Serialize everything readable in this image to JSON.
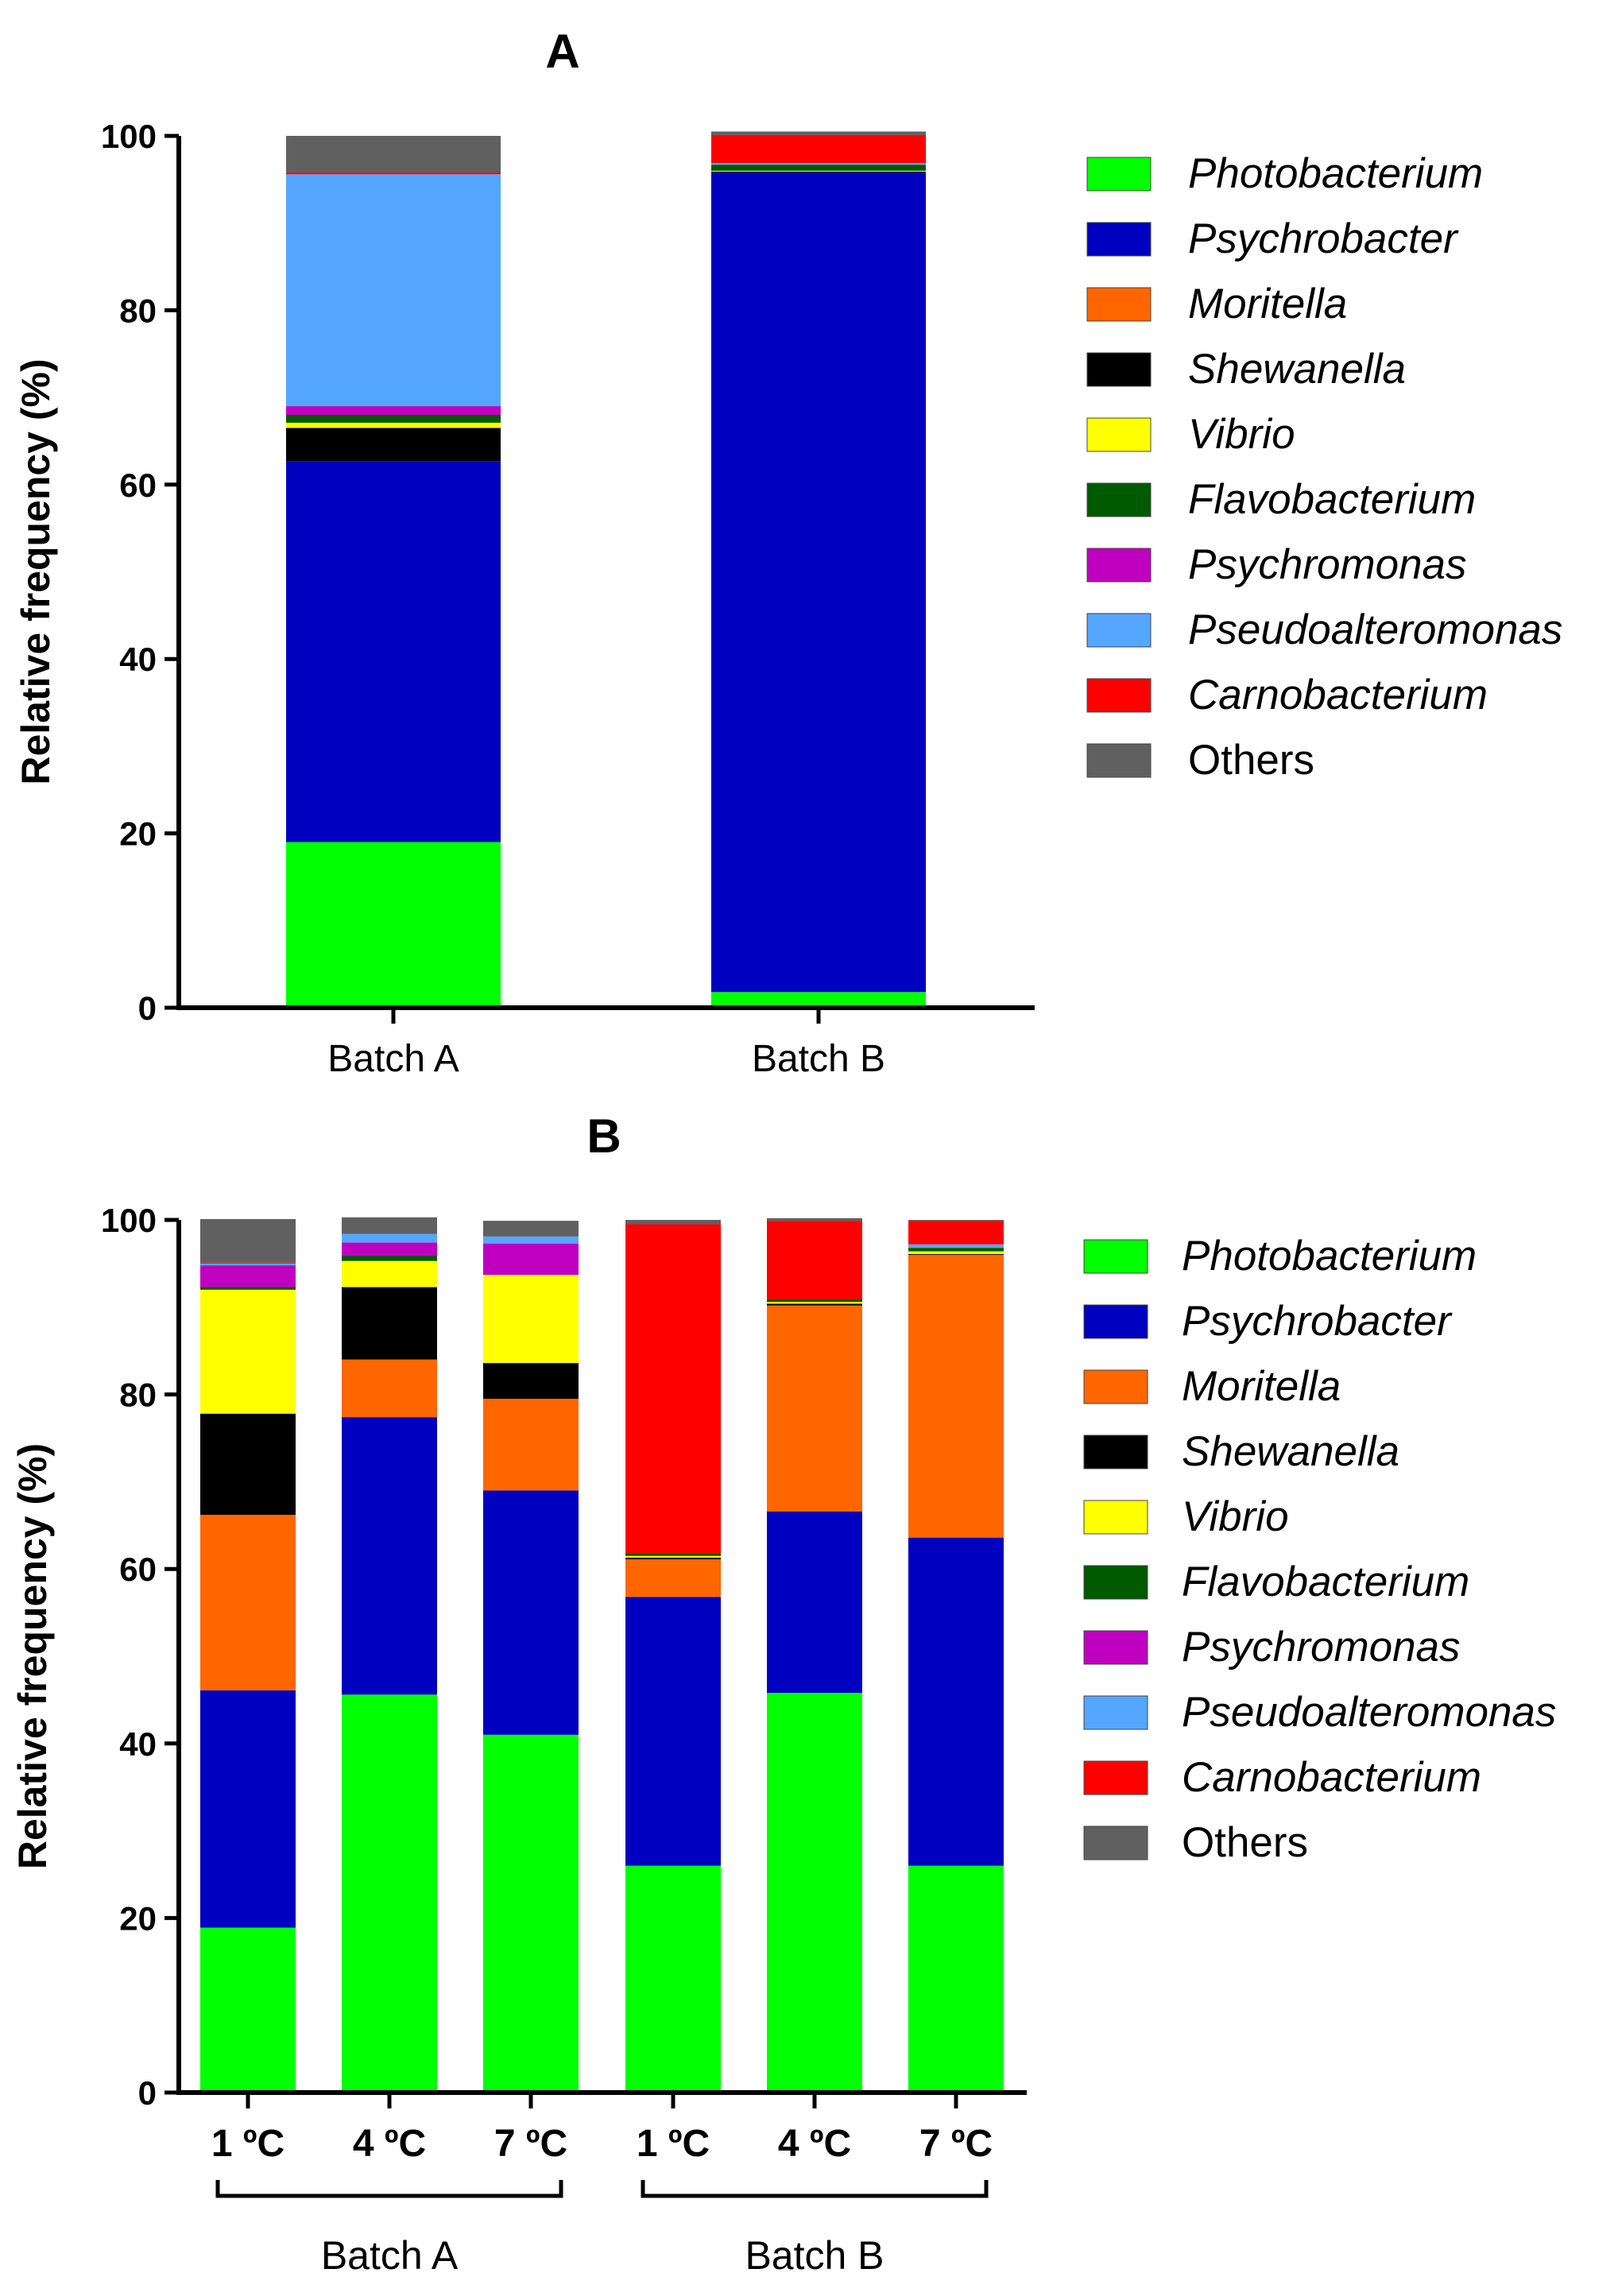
{
  "species": [
    {
      "name": "Photobacterium",
      "italic": true,
      "color": "#00ff00"
    },
    {
      "name": "Psychrobacter",
      "italic": true,
      "color": "#0000c0"
    },
    {
      "name": "Moritella",
      "italic": true,
      "color": "#ff6600"
    },
    {
      "name": "Shewanella",
      "italic": true,
      "color": "#000000"
    },
    {
      "name": "Vibrio",
      "italic": true,
      "color": "#ffff00"
    },
    {
      "name": "Flavobacterium",
      "italic": true,
      "color": "#005a00"
    },
    {
      "name": "Psychromonas",
      "italic": true,
      "color": "#c000c0"
    },
    {
      "name": "Pseudoalteromonas",
      "italic": true,
      "color": "#55a6ff"
    },
    {
      "name": "Carnobacterium",
      "italic": true,
      "color": "#ff0000"
    },
    {
      "name": "Others",
      "italic": false,
      "color": "#606060"
    }
  ],
  "chart_data": [
    {
      "panel": "A",
      "type": "bar",
      "stacked": true,
      "title": "A",
      "ylabel": "Relative frequency (%)",
      "ylim": [
        0,
        100
      ],
      "yticks": [
        0,
        20,
        40,
        60,
        80,
        100
      ],
      "categories": [
        "Batch A",
        "Batch B"
      ],
      "series": [
        {
          "name": "Photobacterium",
          "values": [
            19.0,
            1.8
          ]
        },
        {
          "name": "Psychrobacter",
          "values": [
            43.7,
            94.0
          ]
        },
        {
          "name": "Moritella",
          "values": [
            0,
            0
          ]
        },
        {
          "name": "Shewanella",
          "values": [
            3.8,
            0.1
          ]
        },
        {
          "name": "Vibrio",
          "values": [
            0.6,
            0.1
          ]
        },
        {
          "name": "Flavobacterium",
          "values": [
            0.9,
            0.7
          ]
        },
        {
          "name": "Psychromonas",
          "values": [
            1.0,
            0
          ]
        },
        {
          "name": "Pseudoalteromonas",
          "values": [
            26.6,
            0.2
          ]
        },
        {
          "name": "Carnobacterium",
          "values": [
            0.2,
            3.2
          ]
        },
        {
          "name": "Others",
          "values": [
            4.2,
            0.4
          ]
        }
      ]
    },
    {
      "panel": "B",
      "type": "bar",
      "stacked": true,
      "title": "B",
      "ylabel": "Relative frequency (%)",
      "ylim": [
        0,
        100
      ],
      "yticks": [
        0,
        20,
        40,
        60,
        80,
        100
      ],
      "categories": [
        "1 ºC",
        "4 ºC",
        "7 ºC",
        "1 ºC",
        "4 ºC",
        "7 ºC"
      ],
      "groups": [
        {
          "label": "Batch A",
          "members": [
            0,
            1,
            2
          ]
        },
        {
          "label": "Batch B",
          "members": [
            3,
            4,
            5
          ]
        }
      ],
      "series": [
        {
          "name": "Photobacterium",
          "values": [
            18.9,
            45.6,
            41.0,
            26.0,
            45.8,
            26.0
          ]
        },
        {
          "name": "Psychrobacter",
          "values": [
            27.2,
            31.8,
            28.0,
            30.8,
            20.8,
            37.6
          ]
        },
        {
          "name": "Moritella",
          "values": [
            20.1,
            6.6,
            10.5,
            4.3,
            23.6,
            32.4
          ]
        },
        {
          "name": "Shewanella",
          "values": [
            11.6,
            8.3,
            4.1,
            0.2,
            0.2,
            0.1
          ]
        },
        {
          "name": "Vibrio",
          "values": [
            14.2,
            3.0,
            10.1,
            0.2,
            0.2,
            0.3
          ]
        },
        {
          "name": "Flavobacterium",
          "values": [
            0.3,
            0.6,
            0.0,
            0.3,
            0.3,
            0.4
          ]
        },
        {
          "name": "Psychromonas",
          "values": [
            2.5,
            1.5,
            3.6,
            0.0,
            0.0,
            0.0
          ]
        },
        {
          "name": "Pseudoalteromonas",
          "values": [
            0.2,
            1.0,
            0.8,
            0.0,
            0.0,
            0.4
          ]
        },
        {
          "name": "Carnobacterium",
          "values": [
            0.1,
            0.0,
            0.0,
            37.7,
            9.0,
            2.7
          ]
        },
        {
          "name": "Others",
          "values": [
            5.0,
            1.9,
            1.8,
            0.5,
            0.3,
            0.1
          ]
        }
      ]
    }
  ]
}
